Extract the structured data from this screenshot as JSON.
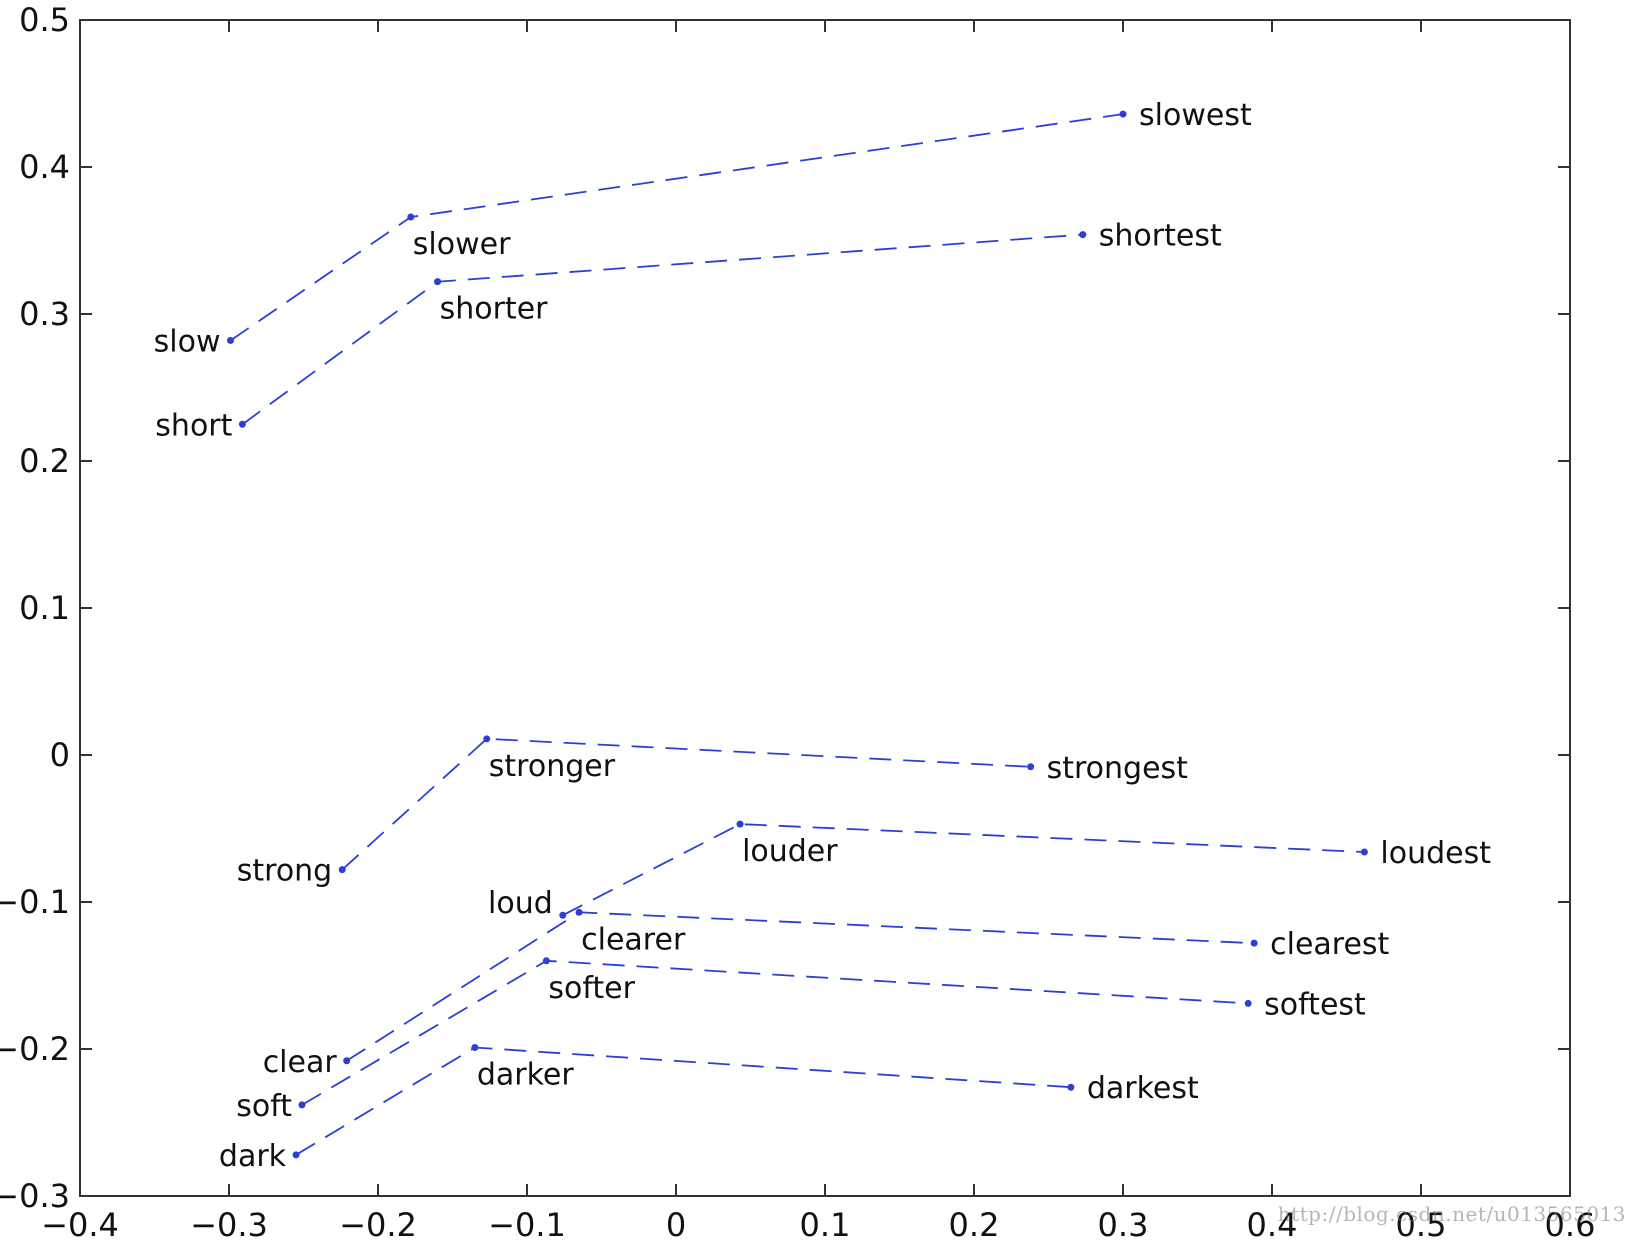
{
  "chart_data": {
    "type": "scatter",
    "xlim": [
      -0.4,
      0.6
    ],
    "ylim": [
      -0.3,
      0.5
    ],
    "xticks": [
      -0.4,
      -0.3,
      -0.2,
      -0.1,
      0,
      0.1,
      0.2,
      0.3,
      0.4,
      0.5,
      0.6
    ],
    "yticks": [
      -0.3,
      -0.2,
      -0.1,
      0,
      0.1,
      0.2,
      0.3,
      0.4,
      0.5
    ],
    "xtick_labels": [
      "−0.4",
      "−0.3",
      "−0.2",
      "−0.1",
      "0",
      "0.1",
      "0.2",
      "0.3",
      "0.4",
      "0.5",
      "0.6"
    ],
    "ytick_labels": [
      "−0.3",
      "−0.2",
      "−0.1",
      "0",
      "0.1",
      "0.2",
      "0.3",
      "0.4",
      "0.5"
    ],
    "grid": false,
    "line_style": "dashed",
    "line_color": "#2b3fd6",
    "series": [
      {
        "points": [
          {
            "label": "slow",
            "x": -0.299,
            "y": 0.282,
            "label_side": "left"
          },
          {
            "label": "slower",
            "x": -0.178,
            "y": 0.366,
            "label_side": "below"
          },
          {
            "label": "slowest",
            "x": 0.3,
            "y": 0.436,
            "label_side": "right"
          }
        ]
      },
      {
        "points": [
          {
            "label": "short",
            "x": -0.291,
            "y": 0.225,
            "label_side": "left"
          },
          {
            "label": "shorter",
            "x": -0.16,
            "y": 0.322,
            "label_side": "below"
          },
          {
            "label": "shortest",
            "x": 0.273,
            "y": 0.354,
            "label_side": "right"
          }
        ]
      },
      {
        "points": [
          {
            "label": "strong",
            "x": -0.224,
            "y": -0.078,
            "label_side": "left"
          },
          {
            "label": "stronger",
            "x": -0.127,
            "y": 0.011,
            "label_side": "below"
          },
          {
            "label": "strongest",
            "x": 0.238,
            "y": -0.008,
            "label_side": "right"
          }
        ]
      },
      {
        "points": [
          {
            "label": "loud",
            "x": -0.076,
            "y": -0.109,
            "label_side": "upper-left"
          },
          {
            "label": "louder",
            "x": 0.043,
            "y": -0.047,
            "label_side": "below"
          },
          {
            "label": "loudest",
            "x": 0.462,
            "y": -0.066,
            "label_side": "right"
          }
        ]
      },
      {
        "points": [
          {
            "label": "clear",
            "x": -0.221,
            "y": -0.208,
            "label_side": "left"
          },
          {
            "label": "clearer",
            "x": -0.065,
            "y": -0.107,
            "label_side": "below"
          },
          {
            "label": "clearest",
            "x": 0.388,
            "y": -0.128,
            "label_side": "right"
          }
        ]
      },
      {
        "points": [
          {
            "label": "soft",
            "x": -0.251,
            "y": -0.238,
            "label_side": "left"
          },
          {
            "label": "softer",
            "x": -0.087,
            "y": -0.14,
            "label_side": "below"
          },
          {
            "label": "softest",
            "x": 0.384,
            "y": -0.169,
            "label_side": "right"
          }
        ]
      },
      {
        "points": [
          {
            "label": "dark",
            "x": -0.255,
            "y": -0.272,
            "label_side": "left"
          },
          {
            "label": "darker",
            "x": -0.135,
            "y": -0.199,
            "label_side": "below"
          },
          {
            "label": "darkest",
            "x": 0.265,
            "y": -0.226,
            "label_side": "right"
          }
        ]
      }
    ]
  },
  "watermark": "http://blog.csdn.net/u013565013"
}
